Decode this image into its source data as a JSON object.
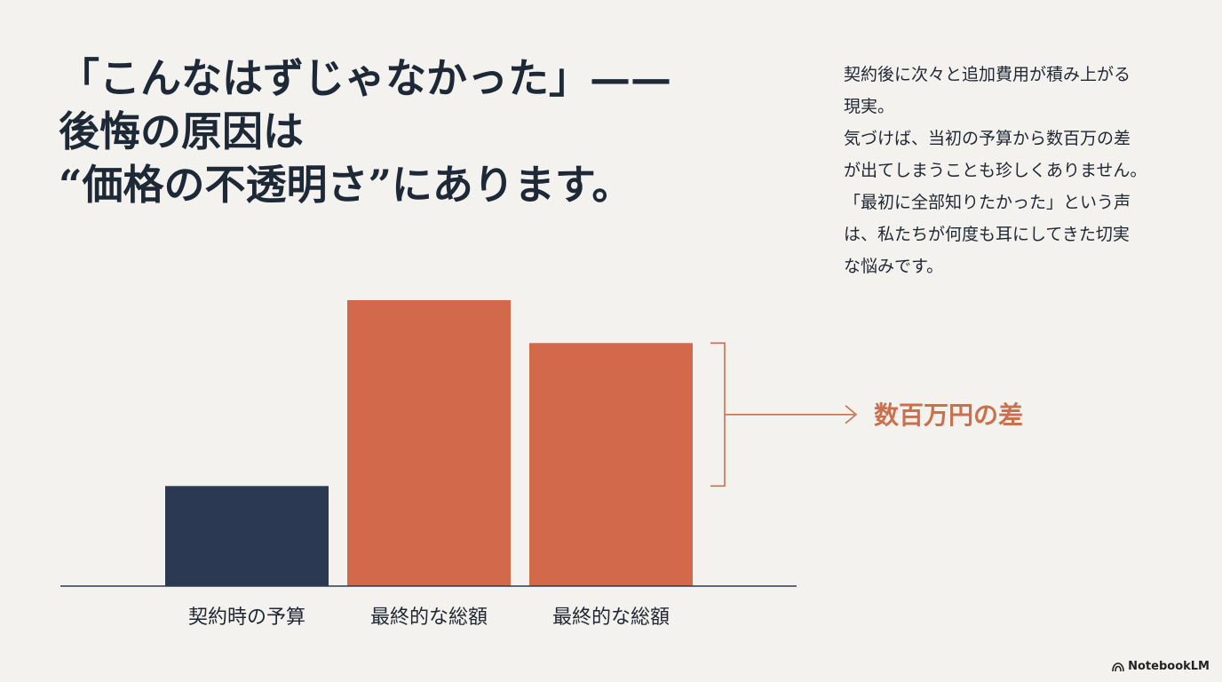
{
  "headline": {
    "line1": "「こんなはずじゃなかった」——",
    "line2": "後悔の原因は",
    "line3": "“価格の不透明さ”にあります。"
  },
  "body": {
    "lines": [
      "契約後に次々と追加費用が積み上がる",
      "現実。",
      "気づけば、当初の予算から数百万の差",
      "が出てしまうことも珍しくありません。",
      "「最初に全部知りたかった」という声",
      "は、私たちが何度も耳にしてきた切実",
      "な悩みです。"
    ]
  },
  "chart_data": {
    "type": "bar",
    "categories": [
      "契約時の予算",
      "最終的な総額",
      "最終的な総額"
    ],
    "values": [
      35,
      100,
      85
    ],
    "colors": [
      "#2b3a52",
      "#d2694a",
      "#d2694a"
    ],
    "annotation": "数百万円の差",
    "annotation_color": "#c9704e",
    "grid": false
  },
  "brand": {
    "label": "NotebookLM"
  }
}
